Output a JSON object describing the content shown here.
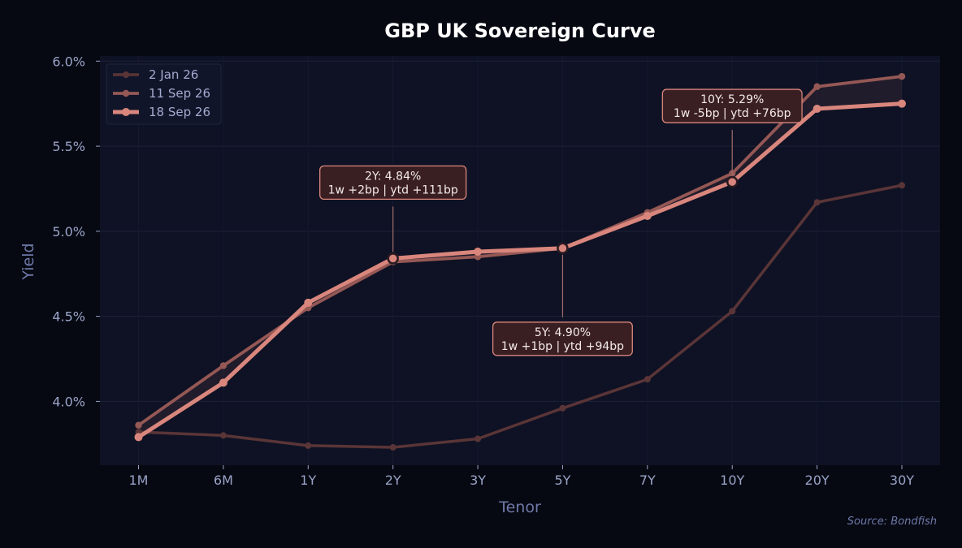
{
  "chart_data": {
    "type": "line",
    "title": "GBP UK Sovereign Curve",
    "xlabel": "Tenor",
    "ylabel": "Yield",
    "categories": [
      "1M",
      "6M",
      "1Y",
      "2Y",
      "3Y",
      "5Y",
      "7Y",
      "10Y",
      "20Y",
      "30Y"
    ],
    "ylim": [
      3.625,
      6.03
    ],
    "yticks": [
      4.0,
      4.5,
      5.0,
      5.5,
      6.0
    ],
    "ytick_labels": [
      "4.0%",
      "4.5%",
      "5.0%",
      "5.5%",
      "6.0%"
    ],
    "series": [
      {
        "name": "2 Jan 26",
        "color": "#5a3537",
        "values": [
          3.82,
          3.8,
          3.74,
          3.73,
          3.78,
          3.96,
          4.13,
          4.53,
          5.17,
          5.27
        ]
      },
      {
        "name": "11 Sep 26",
        "color": "#955855",
        "values": [
          3.86,
          4.21,
          4.55,
          4.82,
          4.85,
          4.9,
          5.11,
          5.34,
          5.85,
          5.91
        ]
      },
      {
        "name": "18 Sep 26",
        "color": "#d9867d",
        "values": [
          3.79,
          4.11,
          4.58,
          4.84,
          4.88,
          4.9,
          5.09,
          5.29,
          5.72,
          5.75
        ]
      }
    ],
    "annotations": [
      {
        "tenor": "2Y",
        "line1": "2Y: 4.84%",
        "line2": "1w +2bp | ytd +111bp",
        "position": "above"
      },
      {
        "tenor": "5Y",
        "line1": "5Y: 4.90%",
        "line2": "1w +1bp | ytd +94bp",
        "position": "below"
      },
      {
        "tenor": "10Y",
        "line1": "10Y: 5.29%",
        "line2": "1w -5bp | ytd +76bp",
        "position": "above"
      }
    ],
    "grid": true,
    "legend_position": "top-left",
    "background": "#0f1224",
    "page_background": "#060912",
    "source": "Source: Bondfish"
  }
}
